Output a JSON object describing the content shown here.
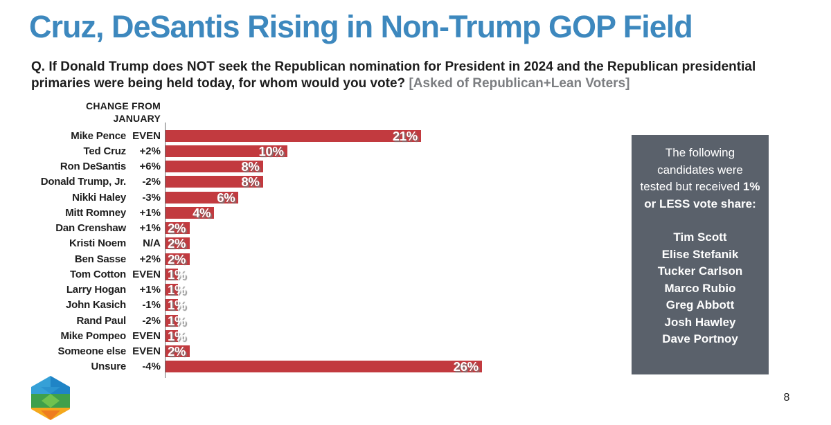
{
  "title": "Cruz, DeSantis Rising in Non-Trump GOP Field",
  "question": {
    "main": "Q. If Donald Trump does NOT seek the Republican nomination for President in 2024 and the Republican presidential primaries were being held today, for whom would you vote?",
    "note": "[Asked of Republican+Lean Voters]"
  },
  "chart_data": {
    "type": "bar",
    "orientation": "horizontal",
    "title": "Non-Trump GOP primary vote share",
    "column_header": "CHANGE FROM JANUARY",
    "column_header_lines": [
      "CHANGE FROM",
      "JANUARY"
    ],
    "categories": [
      "Mike Pence",
      "Ted Cruz",
      "Ron DeSantis",
      "Donald Trump, Jr.",
      "Nikki Haley",
      "Mitt Romney",
      "Dan Crenshaw",
      "Kristi Noem",
      "Ben Sasse",
      "Tom Cotton",
      "Larry Hogan",
      "John Kasich",
      "Rand Paul",
      "Mike Pompeo",
      "Someone else",
      "Unsure"
    ],
    "change_from_january": [
      "EVEN",
      "+2%",
      "+6%",
      "-2%",
      "-3%",
      "+1%",
      "+1%",
      "N/A",
      "+2%",
      "EVEN",
      "+1%",
      "-1%",
      "-2%",
      "EVEN",
      "EVEN",
      "-4%"
    ],
    "values": [
      21,
      10,
      8,
      8,
      6,
      4,
      2,
      2,
      2,
      1,
      1,
      1,
      1,
      1,
      2,
      26
    ],
    "value_labels": [
      "21%",
      "10%",
      "8%",
      "8%",
      "6%",
      "4%",
      "2%",
      "2%",
      "2%",
      "1%",
      "1%",
      "1%",
      "1%",
      "1%",
      "2%",
      "26%"
    ],
    "xlim": [
      0,
      27
    ],
    "grid": false,
    "bar_color": "#c23a3f"
  },
  "side_panel": {
    "intro_regular": "The following candidates were tested but received",
    "intro_bold": "1% or LESS vote share:",
    "names": [
      "Tim Scott",
      "Elise Stefanik",
      "Tucker Carlson",
      "Marco Rubio",
      "Greg Abbott",
      "Josh Hawley",
      "Dave Portnoy"
    ],
    "bg_color": "#5a616b"
  },
  "footer": {
    "page_number": "8",
    "logo_icon": "hexagon-cube-logo"
  },
  "colors": {
    "title_blue": "#3d88be",
    "bar_red": "#c23a3f",
    "panel_gray": "#5a616b",
    "note_gray": "#7c7e81"
  }
}
